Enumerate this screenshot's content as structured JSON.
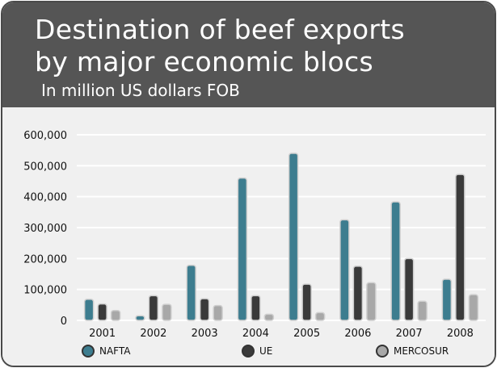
{
  "header": {
    "title": "Destination of beef exports\nby major economic blocs",
    "subtitle": "In million US dollars FOB"
  },
  "colors": {
    "header_bg": "#555555",
    "plot_bg": "#f0f0f0",
    "gridline": "#ffffff",
    "NAFTA": "#3d7d8f",
    "UE": "#3a3a3a",
    "MERCOSUR": "#a8a8a8"
  },
  "chart_data": {
    "type": "bar",
    "title": "Destination of beef exports by major economic blocs",
    "subtitle": "In million US dollars FOB",
    "categories": [
      "2001",
      "2002",
      "2003",
      "2004",
      "2005",
      "2006",
      "2007",
      "2008"
    ],
    "series": [
      {
        "name": "NAFTA",
        "values": [
          68000,
          15000,
          178000,
          460000,
          540000,
          325000,
          383000,
          133000
        ]
      },
      {
        "name": "UE",
        "values": [
          53000,
          80000,
          70000,
          80000,
          117000,
          175000,
          200000,
          472000
        ]
      },
      {
        "name": "MERCOSUR",
        "values": [
          32000,
          52000,
          48000,
          20000,
          25000,
          122000,
          62000,
          83000
        ]
      }
    ],
    "ylim": [
      0,
      600000
    ],
    "yticks": [
      0,
      100000,
      200000,
      300000,
      400000,
      500000,
      600000
    ],
    "ytick_labels": [
      "0",
      "100,000",
      "200,000",
      "300,000",
      "400,000",
      "500,000",
      "600,000"
    ],
    "grid": true,
    "legend_position": "bottom"
  }
}
